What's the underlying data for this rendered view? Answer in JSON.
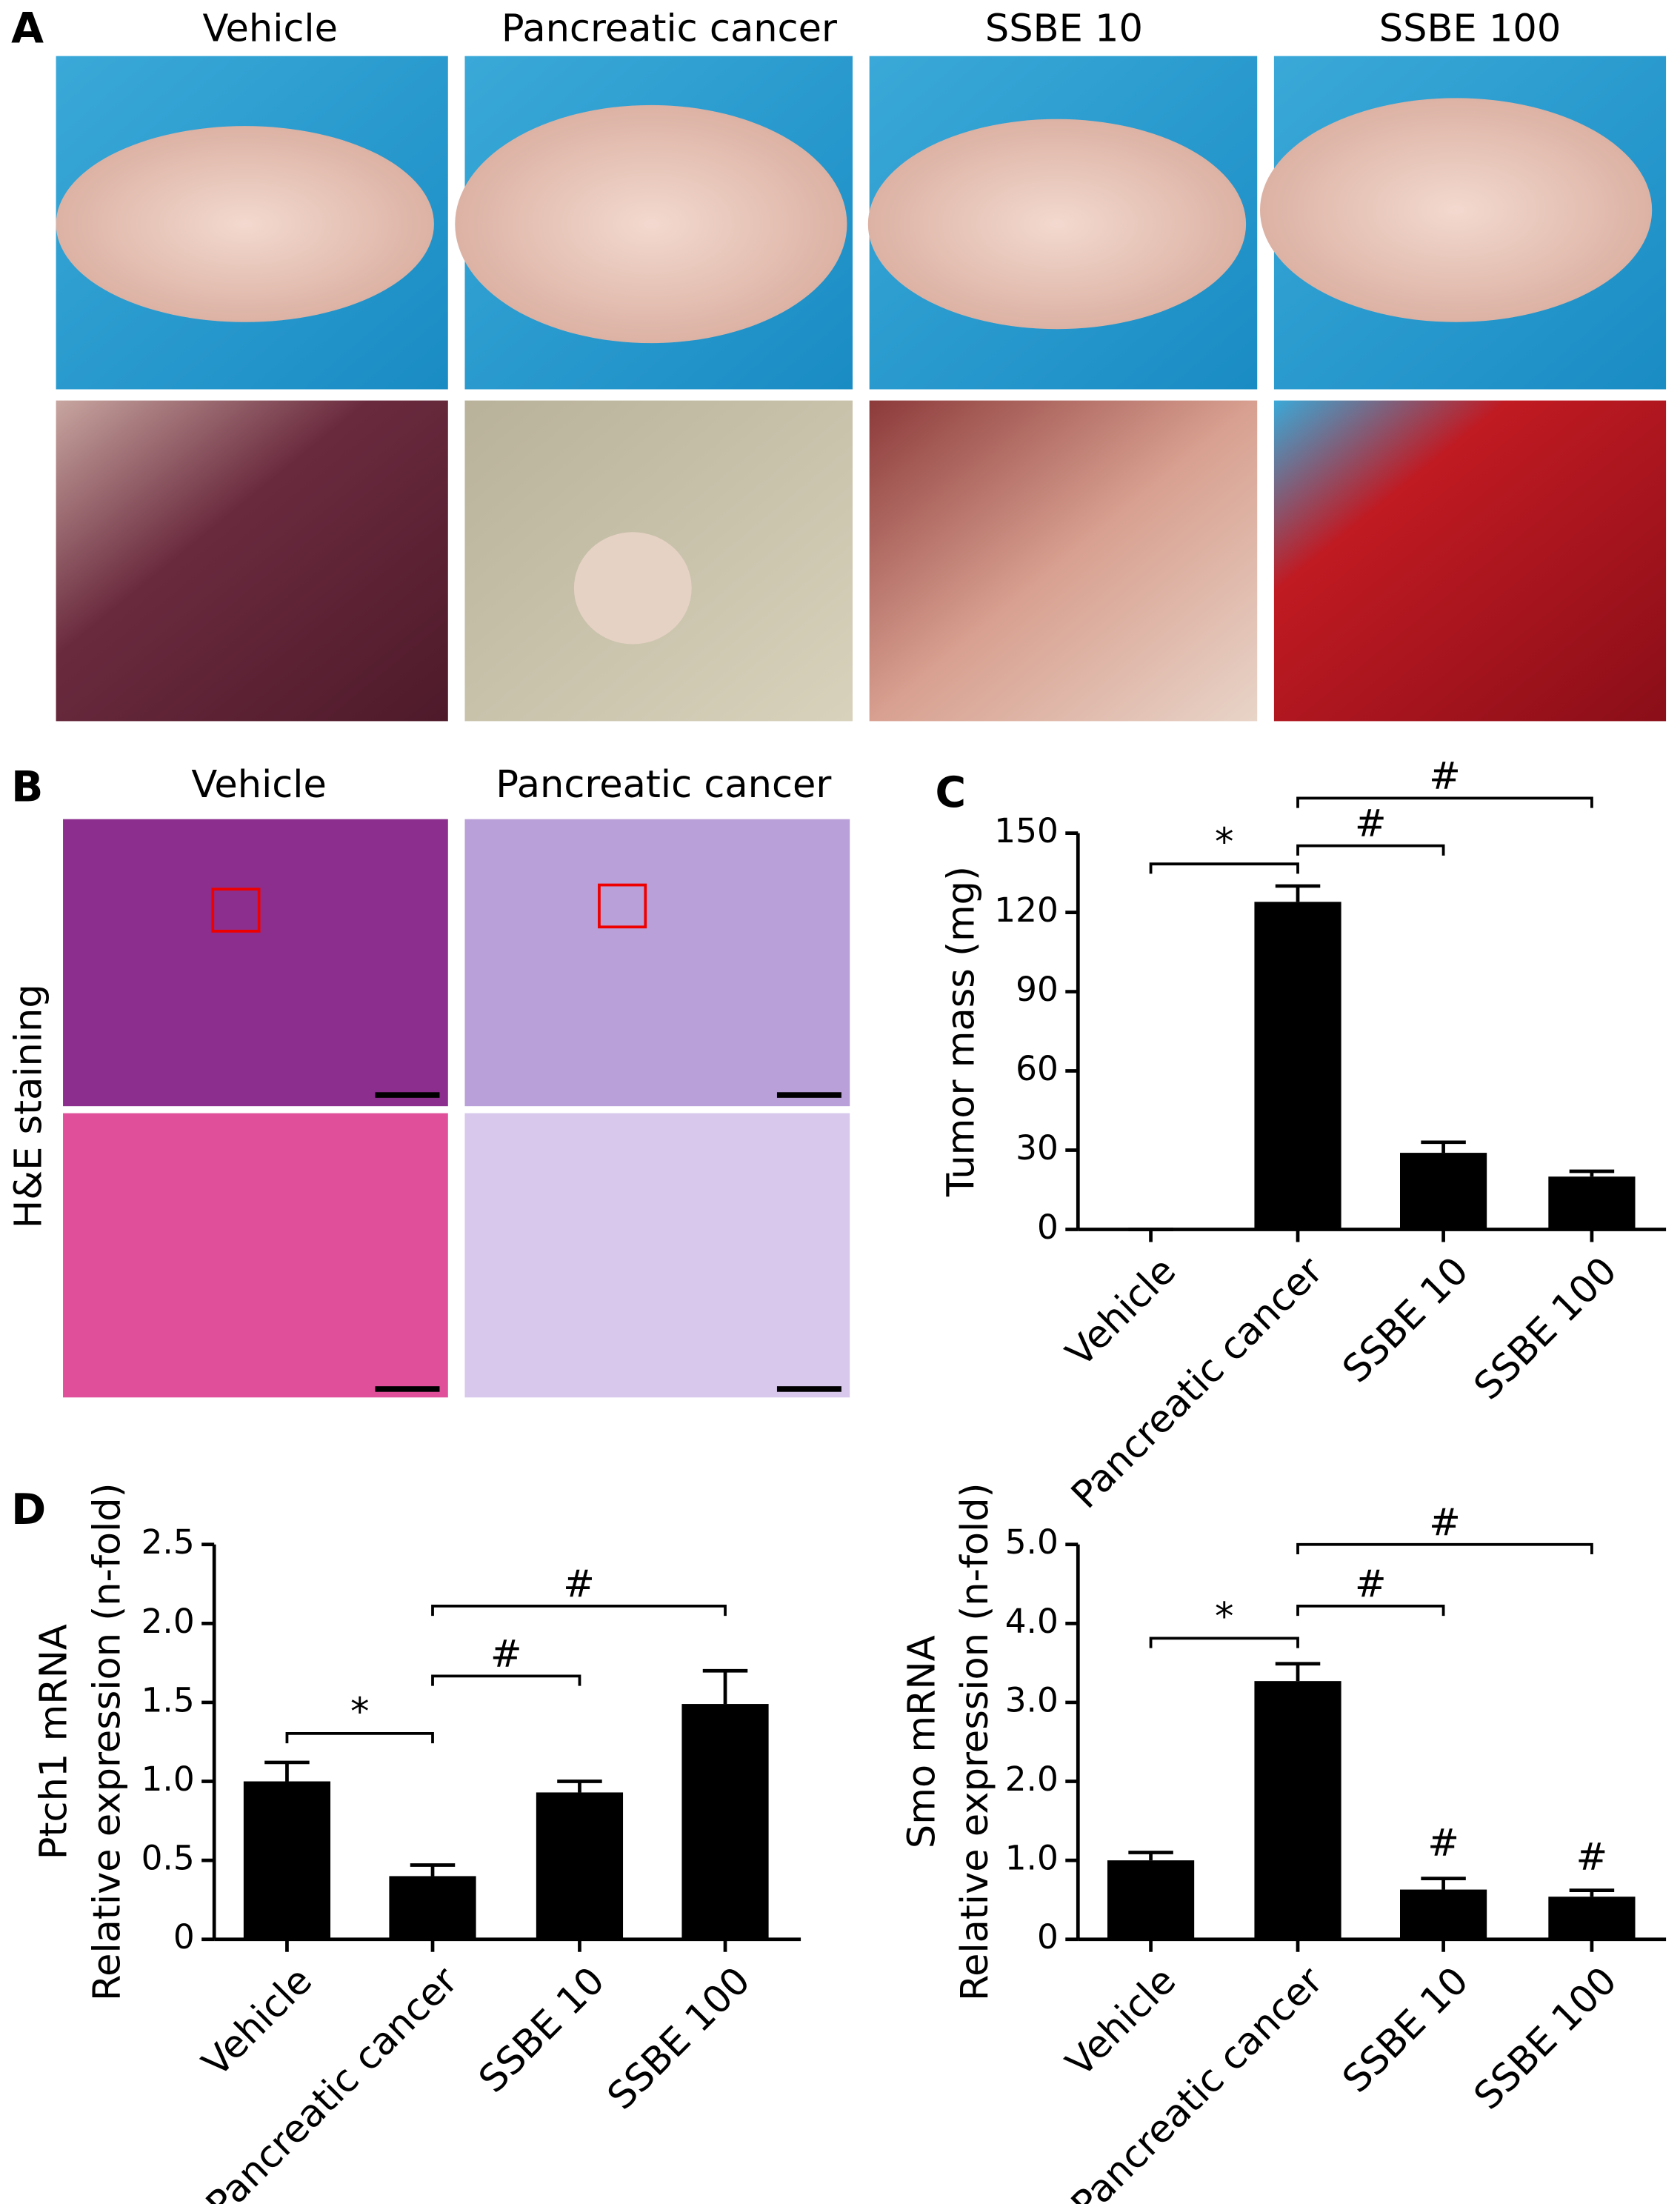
{
  "figure": {
    "panel_labels": [
      "A",
      "B",
      "C",
      "D"
    ],
    "panel_a": {
      "columns": [
        "Vehicle",
        "Pancreatic cancer",
        "SSBE 10",
        "SSBE 100"
      ]
    },
    "panel_b": {
      "columns": [
        "Vehicle",
        "Pancreatic cancer"
      ],
      "row_label": "H&E staining"
    }
  },
  "chart_data": [
    {
      "type": "bar",
      "y_label": [
        "Tumor mass (mg)"
      ],
      "categories": [
        "Vehicle",
        "Pancreatic cancer",
        "SSBE 10",
        "SSBE 100"
      ],
      "series": [
        {
          "color": "#000000",
          "values": [
            0,
            124,
            29,
            20
          ],
          "errors": [
            0,
            6,
            4,
            2
          ]
        }
      ],
      "ylim": [
        0,
        150
      ],
      "yticks": [
        0,
        30,
        60,
        90,
        120,
        150
      ],
      "annotations": [
        "*",
        "#",
        "#"
      ]
    },
    {
      "type": "bar",
      "y_label": [
        "Ptch1  mRNA",
        "Relative expression (n-fold)"
      ],
      "categories": [
        "Vehicle",
        "Pancreatic cancer",
        "SSBE 10",
        "SSBE 100"
      ],
      "series": [
        {
          "color": "#000000",
          "values": [
            1.0,
            0.4,
            0.93,
            1.49
          ],
          "errors": [
            0.12,
            0.07,
            0.07,
            0.21
          ]
        }
      ],
      "ylim": [
        0,
        2.5
      ],
      "yticks": [
        0,
        0.5,
        {
          "value": 1,
          "label": "1.0"
        },
        1.5,
        {
          "value": 2,
          "label": "2.0"
        },
        2.5
      ],
      "annotations": [
        "*",
        "#",
        "#"
      ]
    },
    {
      "type": "bar",
      "y_label": [
        "Smo mRNA",
        "Relative expression (n-fold)"
      ],
      "categories": [
        "Vehicle",
        "Pancreatic cancer",
        "SSBE 10",
        "SSBE 100"
      ],
      "series": [
        {
          "color": "#000000",
          "values": [
            1.0,
            3.27,
            0.63,
            0.54
          ],
          "errors": [
            0.1,
            0.22,
            0.14,
            0.08
          ]
        }
      ],
      "ylim": [
        0,
        5
      ],
      "yticks": [
        0,
        {
          "value": 1,
          "label": "1.0"
        },
        {
          "value": 2,
          "label": "2.0"
        },
        {
          "value": 3,
          "label": "3.0"
        },
        {
          "value": 4,
          "label": "4.0"
        },
        {
          "value": 5,
          "label": "5.0"
        }
      ],
      "annotations": [
        "*",
        "#",
        "#",
        "#",
        "#"
      ]
    }
  ]
}
